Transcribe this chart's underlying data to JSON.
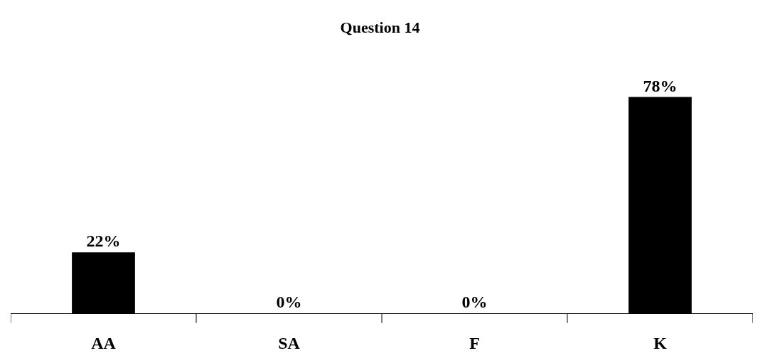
{
  "chart_data": {
    "type": "bar",
    "title": "Question 14",
    "categories": [
      "AA",
      "SA",
      "F",
      "K"
    ],
    "values": [
      22,
      0,
      0,
      78
    ],
    "value_labels": [
      "22%",
      "0%",
      "0%",
      "78%"
    ],
    "color": "#000000"
  }
}
